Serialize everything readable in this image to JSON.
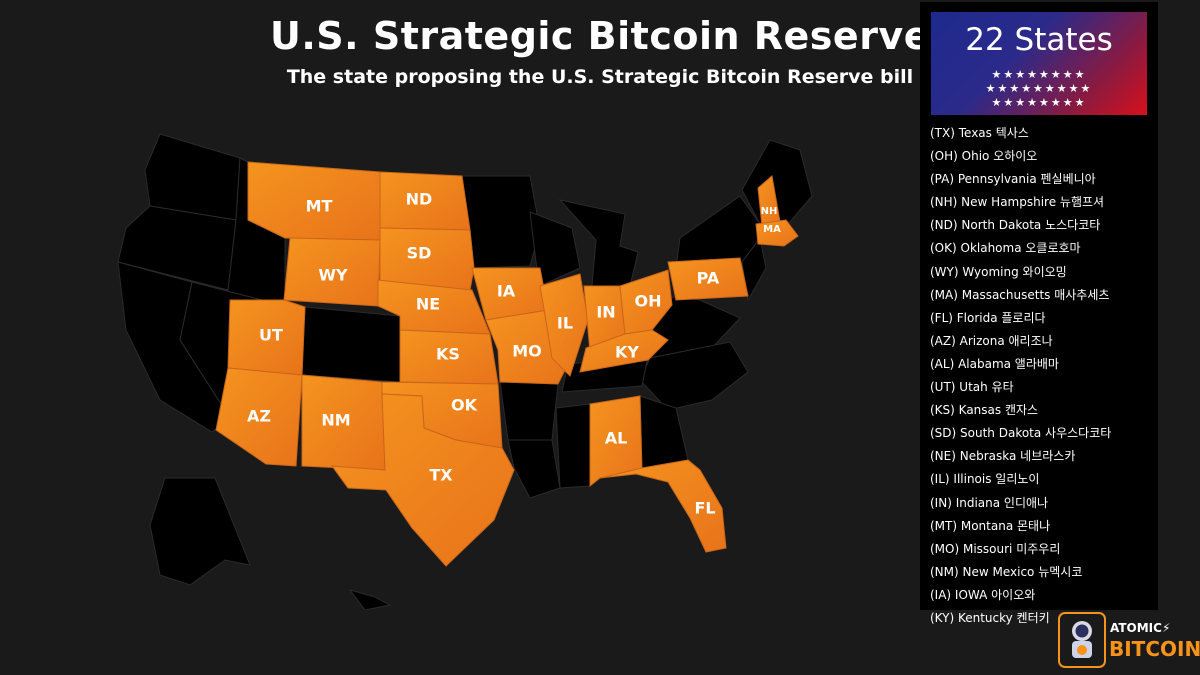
{
  "title": "U.S. Strategic Bitcoin Reserve",
  "subtitle": "The state proposing the U.S. Strategic Bitcoin Reserve bill",
  "colors": {
    "proposing": "#f28a1e",
    "other": "#000000",
    "background": "#1a1a1a",
    "logo_accent": "#f7931a"
  },
  "badge": {
    "title": "22 States",
    "stars": [
      "★★★★★★★★",
      "★★★★★★★★★",
      "★★★★★★★★"
    ]
  },
  "map_labels": [
    "MT",
    "ND",
    "NH",
    "MA",
    "SD",
    "WY",
    "NE",
    "IA",
    "PA",
    "IN",
    "OH",
    "IL",
    "UT",
    "KS",
    "MO",
    "KY",
    "OK",
    "AZ",
    "NM",
    "AL",
    "TX",
    "FL"
  ],
  "states": [
    "(TX) Texas 텍사스",
    "(OH) Ohio 오하이오",
    "(PA) Pennsylvania 펜실베니아",
    "(NH) New Hampshire 뉴햄프셔",
    "(ND) North Dakota 노스다코타",
    "(OK) Oklahoma 오클로호마",
    "(WY) Wyoming 와이오밍",
    "(MA) Massachusetts 매사추세츠",
    "(FL) Florida 플로리다",
    "(AZ) Arizona 애리조나",
    "(AL) Alabama 앨라배마",
    "(UT) Utah 유타",
    "(KS) Kansas 캔자스",
    "(SD) South Dakota 사우스다코타",
    "(NE) Nebraska 네브라스카",
    "(IL) Illinois 일리노이",
    "(IN) Indiana 인디애나",
    "(MT) Montana 몬태나",
    "(MO) Missouri 미주우리",
    "(NM) New Mexico 뉴멕시코",
    "(IA) IOWA 아이오와",
    "(KY) Kentucky 켄터키"
  ],
  "logo": {
    "line1": "ATOMIC⚡",
    "line2": "BITCOIN"
  }
}
